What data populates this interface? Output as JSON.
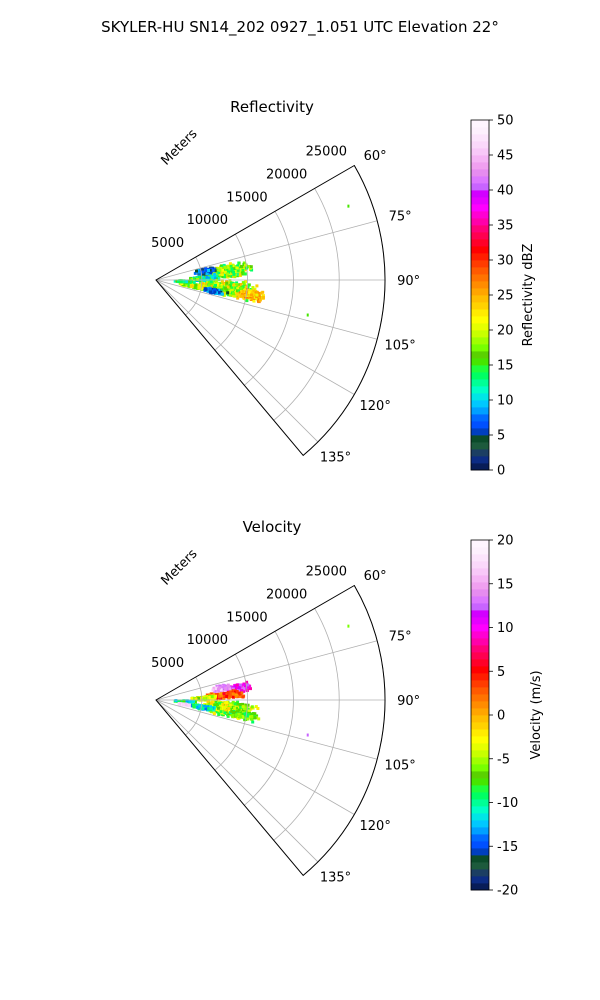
{
  "figure": {
    "suptitle": "SKYLER-HU  SN14_202  0927_1.051 UTC Elevation 22°"
  },
  "chart_data": [
    {
      "type": "heatmap",
      "subtype": "polar-sector radar PPI",
      "title": "Reflectivity",
      "radial_label": "Meters",
      "radial_ticks": [
        5000,
        10000,
        15000,
        20000,
        25000
      ],
      "radial_tick_labels": [
        "5000",
        "10000",
        "15000",
        "20000",
        "25000"
      ],
      "range_limit": 25000,
      "azimuth_range_deg": [
        60,
        140
      ],
      "azimuth_ticks": [
        60,
        75,
        90,
        105,
        120,
        135
      ],
      "azimuth_tick_labels": [
        "60°",
        "75°",
        "90°",
        "105°",
        "120°",
        "135°"
      ],
      "grid": true,
      "colorbar": {
        "label": "Reflectivity dBZ",
        "min": 0,
        "max": 50,
        "ticks": [
          0,
          5,
          10,
          15,
          20,
          25,
          30,
          35,
          40,
          45,
          50
        ],
        "tick_labels": [
          "0",
          "5",
          "10",
          "15",
          "20",
          "25",
          "30",
          "35",
          "40",
          "45",
          "50"
        ],
        "colors": [
          "#081d58",
          "#0c2c84",
          "#1b3e63",
          "#1d5a3c",
          "#0b4b2a",
          "#003fbf",
          "#0050ff",
          "#006aff",
          "#00a0ff",
          "#00c8ff",
          "#00e6e6",
          "#00ffc8",
          "#00ff96",
          "#00ff64",
          "#1eff3c",
          "#46e600",
          "#5ad200",
          "#78ff00",
          "#a0ff00",
          "#c8ff00",
          "#e6ff00",
          "#ffff00",
          "#ffeb00",
          "#ffd200",
          "#ffbe00",
          "#ffa500",
          "#ff8c00",
          "#ff7300",
          "#ff5a00",
          "#ff3c00",
          "#ff1e00",
          "#ff0000",
          "#ff0028",
          "#ff0050",
          "#ff0078",
          "#ff00aa",
          "#ff00d2",
          "#ff00ff",
          "#e600ff",
          "#d200ff",
          "#c864ff",
          "#dc78ff",
          "#e68cf0",
          "#f0a0f0",
          "#f5b4f5",
          "#f8c8f8",
          "#fad8fa",
          "#fce4fc",
          "#fdf0fd",
          "#fff5ff"
        ]
      },
      "echo_regions": [
        {
          "az": 83,
          "r": 7800,
          "dAz": 6,
          "dR": 3200,
          "value": 18,
          "spread": 6
        },
        {
          "az": 88,
          "r": 5300,
          "dAz": 4,
          "dR": 1800,
          "value": 14,
          "spread": 6
        },
        {
          "az": 80,
          "r": 5600,
          "dAz": 4,
          "dR": 1400,
          "value": 6,
          "spread": 4
        },
        {
          "az": 97,
          "r": 7800,
          "dAz": 7,
          "dR": 3600,
          "value": 19,
          "spread": 6
        },
        {
          "az": 99,
          "r": 10500,
          "dAz": 4,
          "dR": 1800,
          "value": 24,
          "spread": 4
        },
        {
          "az": 99,
          "r": 4200,
          "dAz": 3,
          "dR": 1800,
          "value": 19,
          "spread": 5
        },
        {
          "az": 93,
          "r": 3200,
          "dAz": 2,
          "dR": 1400,
          "value": 14,
          "spread": 4
        },
        {
          "az": 101,
          "r": 6500,
          "dAz": 3,
          "dR": 1500,
          "value": 7,
          "spread": 3
        }
      ],
      "isolated_points": [
        {
          "az": 69,
          "r": 22500,
          "value": 15
        },
        {
          "az": 103,
          "r": 17000,
          "value": 15
        }
      ]
    },
    {
      "type": "heatmap",
      "subtype": "polar-sector radar PPI",
      "title": "Velocity",
      "radial_label": "Meters",
      "radial_ticks": [
        5000,
        10000,
        15000,
        20000,
        25000
      ],
      "radial_tick_labels": [
        "5000",
        "10000",
        "15000",
        "20000",
        "25000"
      ],
      "range_limit": 25000,
      "azimuth_range_deg": [
        60,
        140
      ],
      "azimuth_ticks": [
        60,
        75,
        90,
        105,
        120,
        135
      ],
      "azimuth_tick_labels": [
        "60°",
        "75°",
        "90°",
        "105°",
        "120°",
        "135°"
      ],
      "grid": true,
      "colorbar": {
        "label": "Velocity (m/s)",
        "min": -20,
        "max": 20,
        "ticks": [
          -20,
          -15,
          -10,
          -5,
          0,
          5,
          10,
          15,
          20
        ],
        "tick_labels": [
          "-20",
          "-15",
          "-10",
          "-5",
          "0",
          "5",
          "10",
          "15",
          "20"
        ],
        "colors": [
          "#081d58",
          "#0c2c84",
          "#1b3e63",
          "#1d5a3c",
          "#0b4b2a",
          "#003fbf",
          "#0050ff",
          "#006aff",
          "#00a0ff",
          "#00c8ff",
          "#00e6e6",
          "#00ffc8",
          "#00ff96",
          "#00ff64",
          "#1eff3c",
          "#46e600",
          "#5ad200",
          "#78ff00",
          "#a0ff00",
          "#c8ff00",
          "#e6ff00",
          "#ffff00",
          "#ffeb00",
          "#ffd200",
          "#ffbe00",
          "#ffa500",
          "#ff8c00",
          "#ff7300",
          "#ff5a00",
          "#ff3c00",
          "#ff1e00",
          "#ff0000",
          "#ff0028",
          "#ff0050",
          "#ff0078",
          "#ff00aa",
          "#ff00d2",
          "#ff00ff",
          "#e600ff",
          "#d200ff",
          "#c864ff",
          "#dc78ff",
          "#e68cf0",
          "#f0a0f0",
          "#f5b4f5",
          "#f8c8f8",
          "#fad8fa",
          "#fce4fc",
          "#fdf0fd",
          "#fff5ff"
        ]
      },
      "echo_regions": [
        {
          "az": 82,
          "r": 9000,
          "dAz": 4,
          "dR": 1800,
          "value": 11,
          "spread": 3
        },
        {
          "az": 86,
          "r": 7500,
          "dAz": 4,
          "dR": 2200,
          "value": 3,
          "spread": 3
        },
        {
          "az": 80,
          "r": 7200,
          "dAz": 3,
          "dR": 1200,
          "value": 15,
          "spread": 3
        },
        {
          "az": 88,
          "r": 5300,
          "dAz": 3,
          "dR": 1600,
          "value": -4,
          "spread": 3
        },
        {
          "az": 97,
          "r": 8000,
          "dAz": 7,
          "dR": 3600,
          "value": -5,
          "spread": 4
        },
        {
          "az": 99,
          "r": 5200,
          "dAz": 3,
          "dR": 1800,
          "value": -11,
          "spread": 3
        },
        {
          "az": 93,
          "r": 3200,
          "dAz": 2,
          "dR": 1400,
          "value": -10,
          "spread": 3
        },
        {
          "az": 99,
          "r": 3100,
          "dAz": 2,
          "dR": 900,
          "value": 17,
          "spread": 1
        },
        {
          "az": 100,
          "r": 9800,
          "dAz": 3,
          "dR": 1800,
          "value": -7,
          "spread": 3
        }
      ],
      "isolated_points": [
        {
          "az": 69,
          "r": 22500,
          "value": -6
        },
        {
          "az": 103,
          "r": 17000,
          "value": 12
        }
      ]
    }
  ]
}
